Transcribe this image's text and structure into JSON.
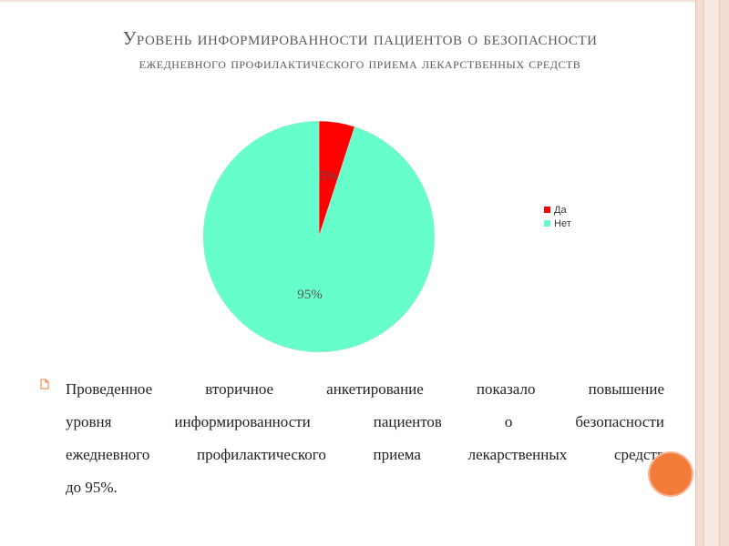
{
  "title": {
    "line1": "Уровень информированности пациентов о безопасности",
    "line2": "ежедневного профилактического приема лекарственных средств"
  },
  "chart_data": {
    "type": "pie",
    "title": "",
    "labels": [
      "Да",
      "Нет"
    ],
    "values": [
      5,
      95
    ],
    "data_labels": [
      "5%",
      "95%"
    ],
    "colors": [
      "#ff0000",
      "#66ffcc"
    ],
    "legend": "right"
  },
  "legend": {
    "items": [
      {
        "label": "Да",
        "color": "#ff0000"
      },
      {
        "label": "Нет",
        "color": "#66ffcc"
      }
    ]
  },
  "bullet": {
    "lines": [
      "Проведенное  вторичное анкетирование показало  повышение",
      "уровня информированности пациентов о безопасности",
      "ежедневного профилактического приема лекарственных средств",
      "до 95%."
    ]
  },
  "theme": {
    "accent": "#f47c3a",
    "stripe": "#f3dcd2"
  }
}
